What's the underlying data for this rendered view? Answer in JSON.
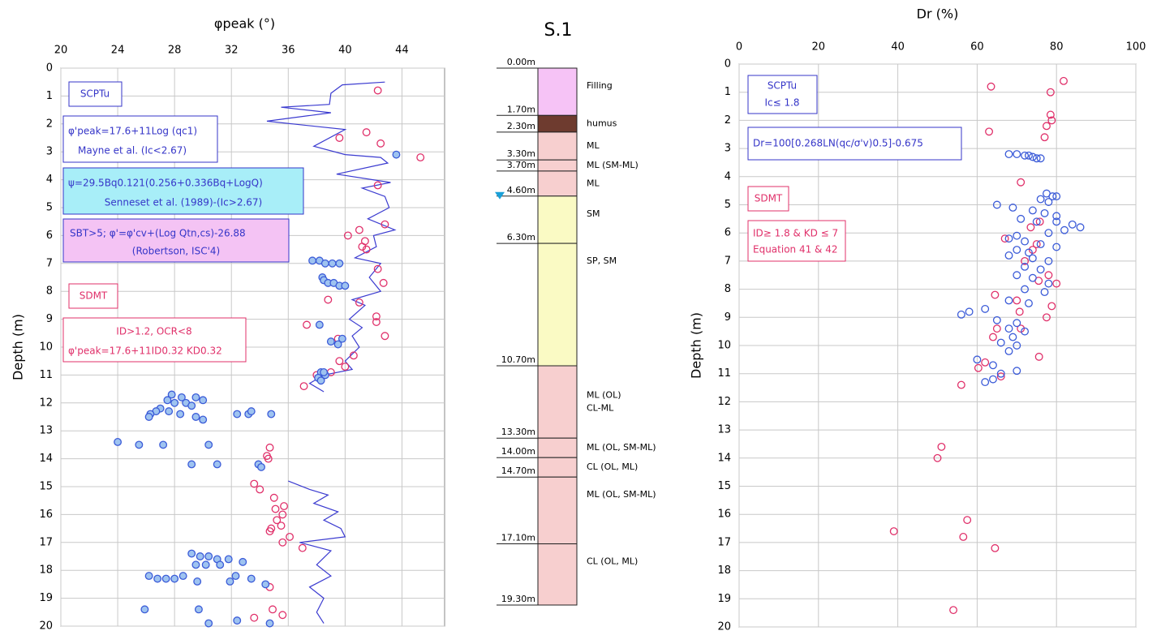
{
  "chart_data": [
    {
      "type": "scatter",
      "title": "φpeak (°)",
      "y_label": "Depth (m)",
      "xlim": [
        20,
        47
      ],
      "xticks": [
        20,
        24,
        28,
        32,
        36,
        40,
        44
      ],
      "ylim": [
        0,
        20
      ],
      "yticks": [
        0,
        1,
        2,
        3,
        4,
        5,
        6,
        7,
        8,
        9,
        10,
        11,
        12,
        13,
        14,
        15,
        16,
        17,
        18,
        19,
        20
      ],
      "grid": true,
      "annotations": [
        "SCPTu",
        "φ'peak=17.6+11Log (qc1)",
        "Mayne et al. (Ic<2.67)",
        "ψ=29.5Bq0.121(0.256+0.336Bq+LogQ)",
        "Senneset et al. (1989)-(Ic>2.67)",
        "SBT>5; φ'=φ'cv+(Log Qtn,cs)-26.88",
        "(Robertson, ISC'4)",
        "SDMT",
        "ID>1.2, OCR<8",
        "φ'peak=17.6+11ID0.32 KD0.32"
      ],
      "series": [
        {
          "style": "line",
          "color": "#3b3bd0",
          "x": [
            42.8,
            39.8,
            39.0,
            38.9,
            35.5,
            39.0,
            34.5,
            40.0,
            37.8,
            40.0,
            42.5,
            43.0,
            39.4,
            43.2,
            41.2,
            42.8,
            43.1,
            41.6,
            43.5,
            42.0,
            42.2,
            40.7,
            42.5,
            41.7,
            42.5,
            40.5,
            41.4,
            40.3,
            41.2,
            40.5,
            41.0,
            40.0,
            40.5,
            38.5,
            37.5,
            38.5,
            null,
            36.0,
            37.5,
            38.8,
            37.8,
            39.5,
            38.5,
            39.7,
            40.0,
            36.8,
            39.0,
            38.0,
            39.0,
            37.5,
            38.5,
            38.0,
            38.5
          ],
          "values": [
            0.5,
            0.6,
            0.9,
            1.3,
            1.4,
            1.6,
            1.9,
            2.2,
            2.8,
            3.1,
            3.2,
            3.4,
            3.8,
            4.1,
            4.3,
            4.6,
            5.0,
            5.4,
            5.8,
            6.0,
            6.4,
            6.8,
            7.0,
            7.5,
            8.0,
            8.3,
            8.5,
            9.0,
            9.3,
            9.6,
            10.0,
            10.5,
            10.8,
            11.0,
            11.3,
            11.6,
            null,
            14.8,
            15.1,
            15.3,
            15.6,
            15.9,
            16.2,
            16.5,
            16.8,
            17.0,
            17.3,
            17.8,
            18.2,
            18.6,
            19.0,
            19.5,
            19.9
          ]
        },
        {
          "style": "circle",
          "color": "#e0306a",
          "fill": "none",
          "x": [
            42.3,
            39.6,
            41.5,
            42.5,
            45.3,
            42.3,
            42.8,
            41.0,
            40.2,
            41.4,
            41.5,
            41.2,
            42.3,
            42.7,
            38.8,
            41.0,
            42.2,
            42.2,
            37.3,
            42.8,
            39.5,
            40.6,
            39.6,
            40.0,
            39.0,
            37.1,
            38.0,
            34.7,
            34.5,
            34.6,
            33.6,
            34.0,
            35.0,
            35.7,
            35.1,
            35.6,
            35.2,
            35.5,
            34.8,
            34.7,
            36.1,
            35.6,
            37.0,
            34.7,
            34.9,
            35.6,
            33.6
          ],
          "values": [
            0.8,
            2.5,
            2.3,
            2.7,
            3.2,
            4.2,
            5.6,
            5.8,
            6.0,
            6.2,
            6.5,
            6.4,
            7.2,
            7.7,
            8.3,
            8.4,
            8.9,
            9.1,
            9.2,
            9.6,
            9.7,
            10.3,
            10.5,
            10.7,
            10.9,
            11.4,
            11.0,
            13.6,
            13.9,
            14.0,
            14.9,
            15.1,
            15.4,
            15.7,
            15.8,
            16.0,
            16.2,
            16.4,
            16.5,
            16.6,
            16.8,
            17.0,
            17.2,
            18.6,
            19.4,
            19.6,
            19.7
          ]
        },
        {
          "style": "circle",
          "color": "#3b5bd8",
          "fill": "#9ec3f0",
          "x": [
            43.6,
            37.7,
            38.2,
            38.6,
            39.1,
            39.6,
            38.4,
            38.5,
            38.8,
            39.2,
            39.6,
            40.0,
            38.2,
            39.5,
            39.8,
            39.0,
            38.3,
            38.6,
            38.1,
            38.3,
            38.5,
            27.8,
            28.5,
            29.5,
            30.0,
            27.5,
            28.0,
            28.8,
            29.2,
            27.0,
            26.7,
            27.6,
            28.4,
            26.3,
            26.2,
            29.5,
            30.0,
            32.4,
            33.2,
            33.4,
            34.8,
            24.0,
            25.5,
            27.2,
            30.4,
            29.2,
            31.0,
            33.9,
            34.1,
            29.2,
            29.8,
            30.4,
            31.0,
            31.8,
            32.8,
            30.2,
            31.2,
            29.5,
            26.2,
            26.8,
            27.4,
            28.0,
            28.6,
            29.6,
            31.9,
            32.3,
            33.4,
            34.4,
            25.9,
            29.7,
            32.4,
            34.7,
            30.4
          ],
          "values": [
            3.1,
            6.9,
            6.9,
            7.0,
            7.0,
            7.0,
            7.5,
            7.6,
            7.7,
            7.7,
            7.8,
            7.8,
            9.2,
            9.9,
            9.7,
            9.8,
            10.9,
            11.0,
            11.1,
            11.2,
            10.9,
            11.7,
            11.8,
            11.8,
            11.9,
            11.9,
            12.0,
            12.0,
            12.1,
            12.2,
            12.3,
            12.3,
            12.4,
            12.4,
            12.5,
            12.5,
            12.6,
            12.4,
            12.4,
            12.3,
            12.4,
            13.4,
            13.5,
            13.5,
            13.5,
            14.2,
            14.2,
            14.2,
            14.3,
            17.4,
            17.5,
            17.5,
            17.6,
            17.6,
            17.7,
            17.8,
            17.8,
            17.8,
            18.2,
            18.3,
            18.3,
            18.3,
            18.2,
            18.4,
            18.4,
            18.2,
            18.3,
            18.5,
            19.4,
            19.4,
            19.8,
            19.9,
            19.9
          ]
        }
      ]
    },
    {
      "type": "scatter",
      "title": "Dr (%)",
      "y_label": "Depth (m)",
      "xlim": [
        0,
        100
      ],
      "xticks": [
        0,
        20,
        40,
        60,
        80,
        100
      ],
      "ylim": [
        0,
        20
      ],
      "yticks": [
        0,
        1,
        2,
        3,
        4,
        5,
        6,
        7,
        8,
        9,
        10,
        11,
        12,
        13,
        14,
        15,
        16,
        17,
        18,
        19,
        20
      ],
      "grid": true,
      "annotations": [
        "SCPTu",
        "Ic≤ 1.8",
        "Dr=100[0.268LN(qc/σ'v)0.5]-0.675",
        "SDMT",
        "ID≥ 1.8 & KD ≤ 7",
        "Equation 41 & 42"
      ],
      "series": [
        {
          "style": "circle",
          "color": "#e0306a",
          "fill": "none",
          "x": [
            81.8,
            63.5,
            78.5,
            78.5,
            78.8,
            77.5,
            77.0,
            63.0,
            71.0,
            75.8,
            73.5,
            67.0,
            75.0,
            74.0,
            72.0,
            78.0,
            75.5,
            80.0,
            64.5,
            70.0,
            78.8,
            70.7,
            77.5,
            65.0,
            71.0,
            64.0,
            75.6,
            62.0,
            60.3,
            66.0,
            56.0,
            51.0,
            50.0,
            57.5,
            39.0,
            56.5,
            64.5,
            54.0
          ],
          "values": [
            0.6,
            0.8,
            1.0,
            1.8,
            2.0,
            2.2,
            2.6,
            2.4,
            4.2,
            5.6,
            5.8,
            6.2,
            6.4,
            6.6,
            7.0,
            7.5,
            7.7,
            7.8,
            8.2,
            8.4,
            8.6,
            8.8,
            9.0,
            9.4,
            9.4,
            9.7,
            10.4,
            10.6,
            10.8,
            11.1,
            11.4,
            13.6,
            14.0,
            16.2,
            16.6,
            16.8,
            17.2,
            19.4
          ]
        },
        {
          "style": "circle",
          "color": "#3b5bd8",
          "fill": "none",
          "x": [
            68,
            70,
            72,
            73,
            74,
            75,
            76,
            77.5,
            79,
            80,
            76,
            78,
            65,
            69,
            74,
            77,
            80,
            71,
            75,
            80,
            84,
            86,
            82,
            78,
            70,
            68,
            72,
            76,
            80,
            70,
            73,
            68,
            74,
            78,
            72,
            76,
            70,
            74,
            78,
            72,
            77,
            68,
            73,
            62,
            58,
            56,
            65,
            70,
            68,
            72,
            69,
            66,
            70,
            68,
            60,
            64,
            70,
            66,
            64,
            62
          ],
          "values": [
            3.2,
            3.2,
            3.25,
            3.25,
            3.3,
            3.35,
            3.35,
            4.6,
            4.7,
            4.7,
            4.8,
            4.9,
            5.0,
            5.1,
            5.2,
            5.3,
            5.4,
            5.5,
            5.6,
            5.6,
            5.7,
            5.8,
            5.9,
            6.0,
            6.1,
            6.2,
            6.3,
            6.4,
            6.5,
            6.6,
            6.7,
            6.8,
            6.9,
            7.0,
            7.2,
            7.3,
            7.5,
            7.6,
            7.8,
            8.0,
            8.1,
            8.4,
            8.5,
            8.7,
            8.8,
            8.9,
            9.1,
            9.2,
            9.4,
            9.5,
            9.7,
            9.9,
            10.0,
            10.2,
            10.5,
            10.7,
            10.9,
            11.0,
            11.2,
            11.3
          ]
        }
      ]
    }
  ],
  "borehole": {
    "title": "S.1",
    "boundaries": [
      {
        "value": 0,
        "label": "0.00m"
      },
      {
        "value": 1.7,
        "label": "1.70m"
      },
      {
        "value": 2.3,
        "label": "2.30m"
      },
      {
        "value": 3.3,
        "label": "3.30m"
      },
      {
        "value": 3.7,
        "label": "3.70m"
      },
      {
        "value": 4.6,
        "label": "4.60m"
      },
      {
        "value": 6.3,
        "label": "6.30m"
      },
      {
        "value": 10.7,
        "label": "10.70m"
      },
      {
        "value": 13.3,
        "label": "13.30m"
      },
      {
        "value": 14,
        "label": "14.00m"
      },
      {
        "value": 14.7,
        "label": "14.70m"
      },
      {
        "value": 17.1,
        "label": "17.10m"
      },
      {
        "value": 19.3,
        "label": "19.30m"
      }
    ],
    "layers": [
      {
        "label": [
          "Filling"
        ],
        "color": "#f6c3f6"
      },
      {
        "label": [
          "humus"
        ],
        "color": "#6e3b2f"
      },
      {
        "label": [
          "ML"
        ],
        "color": "#f7cfcf"
      },
      {
        "label": [
          "ML (SM-ML)"
        ],
        "color": "#f7cfcf"
      },
      {
        "label": [
          "ML"
        ],
        "color": "#f7cfcf"
      },
      {
        "label": [
          "SM"
        ],
        "color": "#fafac4"
      },
      {
        "label": [
          "SP, SM"
        ],
        "color": "#fafac4"
      },
      {
        "label": [
          "ML (OL)",
          "CL-ML"
        ],
        "color": "#f7cfcf"
      },
      {
        "label": [
          "ML (OL, SM-ML)"
        ],
        "color": "#f7cfcf"
      },
      {
        "label": [
          "CL (OL, ML)"
        ],
        "color": "#f7cfcf"
      },
      {
        "label": [
          "ML (OL, SM-ML)"
        ],
        "color": "#f7cfcf"
      },
      {
        "label": [
          "CL (OL, ML)"
        ],
        "color": "#f7cfcf"
      }
    ]
  }
}
